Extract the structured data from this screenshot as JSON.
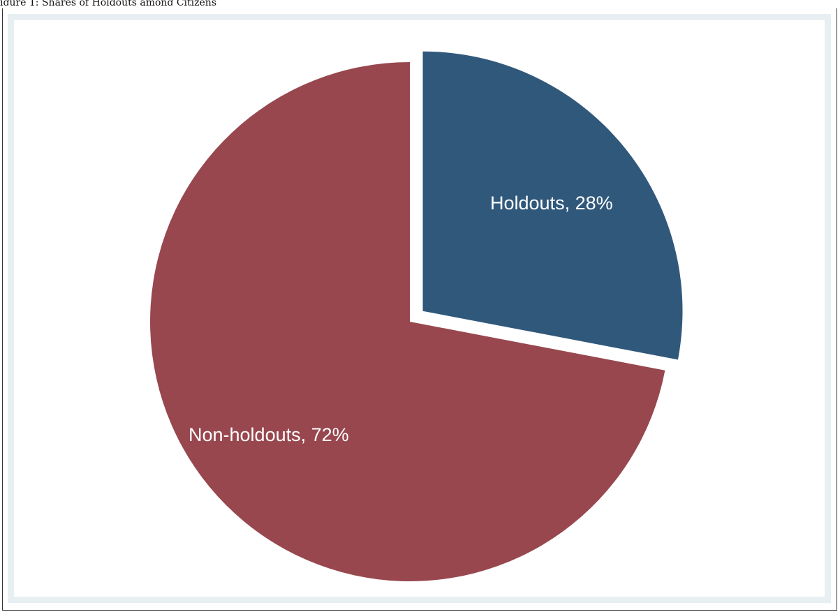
{
  "caption_fragment": "igure 1: Shares of Holdouts among Citizens",
  "chart_data": {
    "type": "pie",
    "categories": [
      "Holdouts",
      "Non-holdouts"
    ],
    "values": [
      28,
      72
    ],
    "labels": [
      "Holdouts, 28%",
      "Non-holdouts, 72%"
    ],
    "colors": [
      "#30587b",
      "#98474e"
    ],
    "exploded": [
      true,
      false
    ],
    "start_angle": "12 o'clock",
    "direction": "clockwise",
    "legend": "none",
    "title": "",
    "frame_color": "#e8eff2"
  }
}
